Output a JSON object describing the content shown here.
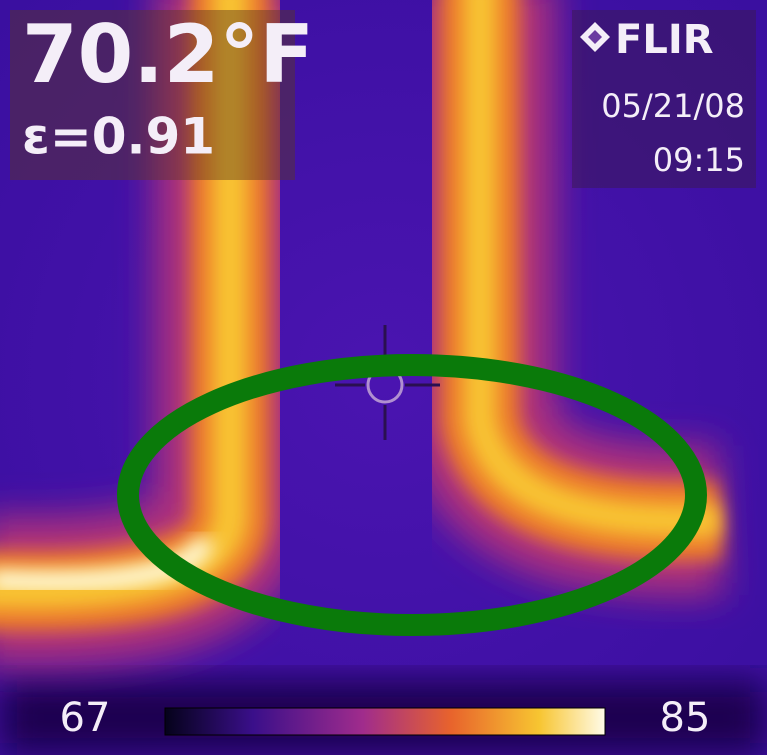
{
  "reading": {
    "temperature": "70.2°F",
    "emissivity": "ε=0.91"
  },
  "brand": "FLIR",
  "timestamp": {
    "date": "05/21/08",
    "time": "09:15"
  },
  "scale": {
    "min": "67",
    "max": "85"
  }
}
